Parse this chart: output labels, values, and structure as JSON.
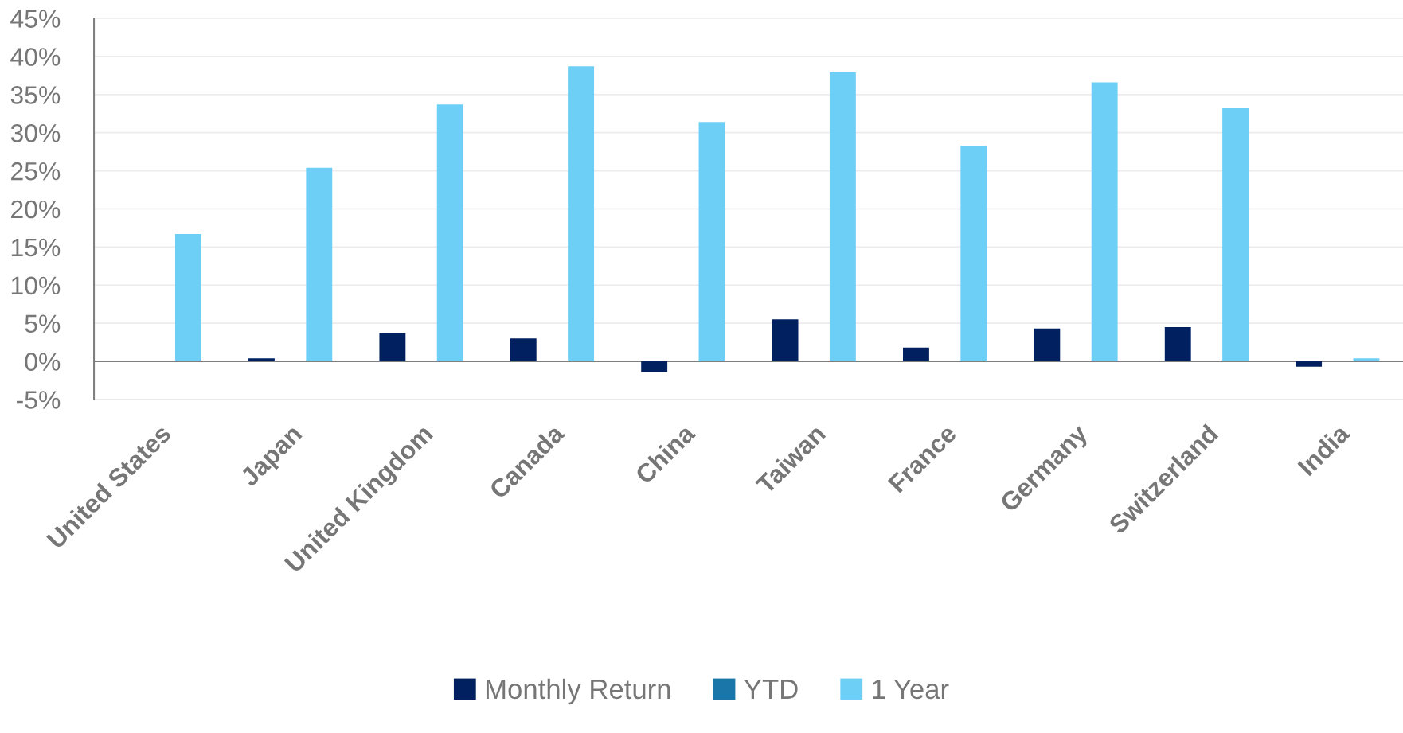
{
  "chart_data": {
    "type": "bar",
    "categories": [
      "United States",
      "Japan",
      "United Kingdom",
      "Canada",
      "China",
      "Taiwan",
      "France",
      "Germany",
      "Switzerland",
      "India"
    ],
    "series": [
      {
        "name": "Monthly Return",
        "color": "#002060",
        "values": [
          0,
          0.4,
          3.7,
          3.0,
          -1.4,
          5.5,
          1.8,
          4.3,
          4.5,
          -0.7
        ]
      },
      {
        "name": "YTD",
        "color": "#1a75a8",
        "values": [
          null,
          null,
          null,
          null,
          null,
          null,
          null,
          null,
          null,
          null
        ]
      },
      {
        "name": "1 Year",
        "color": "#6dcff6",
        "values": [
          16.7,
          25.4,
          33.7,
          38.7,
          31.4,
          37.9,
          28.3,
          36.6,
          33.2,
          0.4
        ]
      }
    ],
    "ylim": [
      -5,
      45
    ],
    "yticks": [
      {
        "value": -5,
        "label": "-5%"
      },
      {
        "value": 0,
        "label": "0%"
      },
      {
        "value": 5,
        "label": "5%"
      },
      {
        "value": 10,
        "label": "10%"
      },
      {
        "value": 15,
        "label": "15%"
      },
      {
        "value": 20,
        "label": "20%"
      },
      {
        "value": 25,
        "label": "25%"
      },
      {
        "value": 30,
        "label": "30%"
      },
      {
        "value": 35,
        "label": "35%"
      },
      {
        "value": 40,
        "label": "40%"
      },
      {
        "value": 45,
        "label": "45%"
      }
    ],
    "grid": "y",
    "legend": "bottom"
  }
}
